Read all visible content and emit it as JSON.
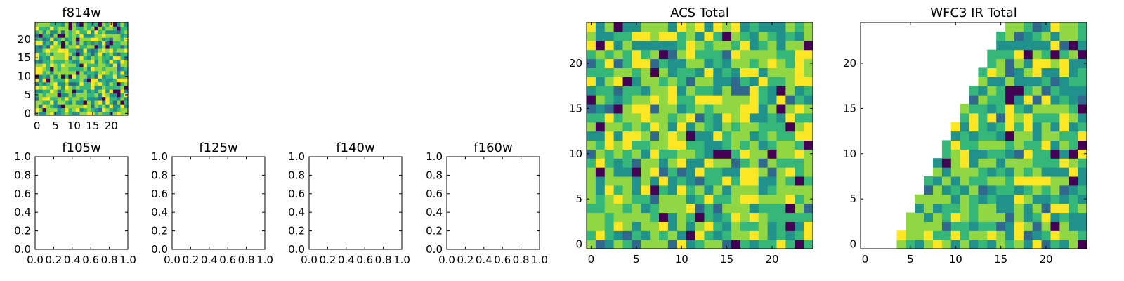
{
  "colors": {
    "viridis_dark": "#440154",
    "viridis_blue": "#31688e",
    "viridis_teal": "#21918c",
    "viridis_green": "#35b779",
    "viridis_lime": "#90d743",
    "viridis_yellow": "#fde725",
    "axes": "#000000"
  },
  "chart_data": [
    {
      "id": "f814w",
      "type": "heatmap",
      "title": "f814w",
      "colormap": "viridis",
      "nx": 25,
      "ny": 25,
      "xlim": [
        -0.5,
        24.5
      ],
      "ylim": [
        -0.5,
        24.5
      ],
      "xticks": [
        0,
        5,
        10,
        15,
        20
      ],
      "yticks": [
        0,
        5,
        10,
        15,
        20
      ],
      "xtick_labels": [
        "0",
        "5",
        "10",
        "15",
        "20"
      ],
      "ytick_labels": [
        "0",
        "5",
        "10",
        "15",
        "20"
      ],
      "seed": 814,
      "value_note_levels": [
        0.0,
        0.35,
        0.5,
        0.65,
        0.85,
        1.0
      ],
      "mask": "none"
    },
    {
      "id": "f105w",
      "type": "empty",
      "title": "f105w",
      "xlim": [
        0,
        1
      ],
      "ylim": [
        0,
        1
      ],
      "xtick_labels": [
        "0.0",
        "0.2",
        "0.4",
        "0.6",
        "0.8",
        "1.0"
      ],
      "ytick_labels": [
        "0.0",
        "0.2",
        "0.4",
        "0.6",
        "0.8",
        "1.0"
      ]
    },
    {
      "id": "f125w",
      "type": "empty",
      "title": "f125w",
      "xlim": [
        0,
        1
      ],
      "ylim": [
        0,
        1
      ],
      "xtick_labels": [
        "0.0",
        "0.2",
        "0.4",
        "0.6",
        "0.8",
        "1.0"
      ],
      "ytick_labels": [
        "0.0",
        "0.2",
        "0.4",
        "0.6",
        "0.8",
        "1.0"
      ]
    },
    {
      "id": "f140w",
      "type": "empty",
      "title": "f140w",
      "xlim": [
        0,
        1
      ],
      "ylim": [
        0,
        1
      ],
      "xtick_labels": [
        "0.0",
        "0.2",
        "0.4",
        "0.6",
        "0.8",
        "1.0"
      ],
      "ytick_labels": [
        "0.0",
        "0.2",
        "0.4",
        "0.6",
        "0.8",
        "1.0"
      ]
    },
    {
      "id": "f160w",
      "type": "empty",
      "title": "f160w",
      "xlim": [
        0,
        1
      ],
      "ylim": [
        0,
        1
      ],
      "xtick_labels": [
        "0.0",
        "0.2",
        "0.4",
        "0.6",
        "0.8",
        "1.0"
      ],
      "ytick_labels": [
        "0.0",
        "0.2",
        "0.4",
        "0.6",
        "0.8",
        "1.0"
      ]
    },
    {
      "id": "acs-total",
      "type": "heatmap",
      "title": "ACS Total",
      "colormap": "viridis",
      "nx": 25,
      "ny": 25,
      "xlim": [
        -0.5,
        24.5
      ],
      "ylim": [
        -0.5,
        24.5
      ],
      "xticks": [
        0,
        5,
        10,
        15,
        20
      ],
      "yticks": [
        0,
        5,
        10,
        15,
        20
      ],
      "xtick_labels": [
        "0",
        "5",
        "10",
        "15",
        "20"
      ],
      "ytick_labels": [
        "0",
        "5",
        "10",
        "15",
        "20"
      ],
      "seed": 1001,
      "mask": "none"
    },
    {
      "id": "wfc3-ir-total",
      "type": "heatmap",
      "title": "WFC3 IR Total",
      "colormap": "viridis",
      "nx": 25,
      "ny": 25,
      "xlim": [
        -0.5,
        24.5
      ],
      "ylim": [
        -0.5,
        24.5
      ],
      "xticks": [
        0,
        5,
        10,
        15,
        20
      ],
      "yticks": [
        0,
        5,
        10,
        15,
        20
      ],
      "xtick_labels": [
        "0",
        "5",
        "10",
        "15",
        "20"
      ],
      "ytick_labels": [
        "0",
        "5",
        "10",
        "15",
        "20"
      ],
      "seed": 2002,
      "mask": "upper-left-triangle",
      "mask_left_edge_by_row": [
        4,
        4,
        5,
        5,
        6,
        6,
        7,
        7,
        8,
        8,
        9,
        9,
        10,
        10,
        11,
        11,
        12,
        12,
        13,
        13,
        14,
        14,
        15,
        15,
        16
      ]
    }
  ]
}
